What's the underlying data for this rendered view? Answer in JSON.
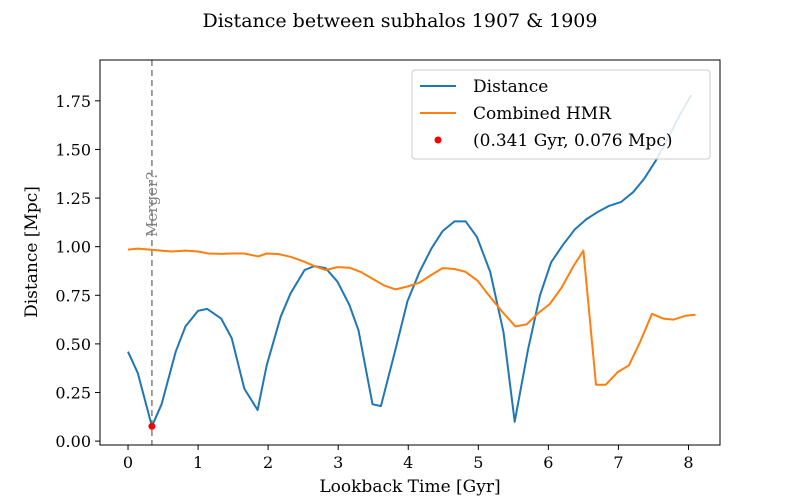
{
  "chart_data": {
    "type": "line",
    "title": "Distance between subhalos 1907 & 1909",
    "xlabel": "Lookback Time [Gyr]",
    "ylabel": "Distance [Mpc]",
    "xlim": [
      -0.4,
      8.45
    ],
    "ylim": [
      -0.02,
      1.96
    ],
    "xticks": [
      0,
      1,
      2,
      3,
      4,
      5,
      6,
      7,
      8
    ],
    "yticks": [
      0.0,
      0.25,
      0.5,
      0.75,
      1.0,
      1.25,
      1.5,
      1.75
    ],
    "ytick_labels": [
      "0.00",
      "0.25",
      "0.50",
      "0.75",
      "1.00",
      "1.25",
      "1.50",
      "1.75"
    ],
    "grid": false,
    "legend_position": "top-right",
    "series": [
      {
        "name": "Distance",
        "color": "#1f77b4",
        "x": [
          0.0,
          0.14,
          0.341,
          0.48,
          0.68,
          0.82,
          1.0,
          1.13,
          1.33,
          1.48,
          1.66,
          1.85,
          1.98,
          2.18,
          2.32,
          2.52,
          2.66,
          2.82,
          2.99,
          3.16,
          3.29,
          3.49,
          3.61,
          3.81,
          3.99,
          4.16,
          4.33,
          4.49,
          4.66,
          4.82,
          4.98,
          5.17,
          5.36,
          5.52,
          5.71,
          5.88,
          6.04,
          6.21,
          6.38,
          6.54,
          6.71,
          6.87,
          7.04,
          7.21,
          7.37,
          7.53,
          7.71,
          7.88,
          8.04
        ],
        "y": [
          0.46,
          0.35,
          0.076,
          0.19,
          0.46,
          0.59,
          0.67,
          0.68,
          0.63,
          0.53,
          0.27,
          0.16,
          0.39,
          0.64,
          0.76,
          0.88,
          0.9,
          0.89,
          0.82,
          0.7,
          0.57,
          0.19,
          0.18,
          0.46,
          0.72,
          0.87,
          0.99,
          1.08,
          1.13,
          1.13,
          1.05,
          0.87,
          0.56,
          0.1,
          0.47,
          0.75,
          0.92,
          1.01,
          1.09,
          1.14,
          1.18,
          1.21,
          1.23,
          1.28,
          1.35,
          1.44,
          1.56,
          1.68,
          1.78
        ]
      },
      {
        "name": "Combined HMR",
        "color": "#ff7f0e",
        "x": [
          0.0,
          0.14,
          0.62,
          0.82,
          1.0,
          1.15,
          1.33,
          1.49,
          1.66,
          1.86,
          1.98,
          2.15,
          2.32,
          2.5,
          2.66,
          2.82,
          2.99,
          3.16,
          3.32,
          3.49,
          3.66,
          3.82,
          3.99,
          4.16,
          4.33,
          4.49,
          4.66,
          4.82,
          4.99,
          5.15,
          5.33,
          5.53,
          5.69,
          5.86,
          6.02,
          6.19,
          6.35,
          6.5,
          6.68,
          6.82,
          6.99,
          7.15,
          7.31,
          7.48,
          7.64,
          7.79,
          7.96,
          8.1
        ],
        "y": [
          0.985,
          0.99,
          0.975,
          0.98,
          0.975,
          0.965,
          0.963,
          0.965,
          0.965,
          0.95,
          0.965,
          0.962,
          0.948,
          0.925,
          0.9,
          0.88,
          0.895,
          0.892,
          0.87,
          0.835,
          0.8,
          0.78,
          0.795,
          0.815,
          0.855,
          0.89,
          0.885,
          0.87,
          0.825,
          0.75,
          0.67,
          0.59,
          0.6,
          0.66,
          0.705,
          0.79,
          0.895,
          0.98,
          0.29,
          0.29,
          0.355,
          0.39,
          0.51,
          0.655,
          0.63,
          0.625,
          0.645,
          0.65
        ]
      },
      {
        "name": "(0.341 Gyr, 0.076 Mpc)",
        "color": "#ff0000",
        "marker": "point",
        "x": [
          0.341
        ],
        "y": [
          0.076
        ]
      }
    ],
    "annotations": [
      {
        "text": "Merger?",
        "x": 0.341,
        "y": 1.05,
        "color": "#808080",
        "line": "vertical-dashed"
      }
    ]
  }
}
